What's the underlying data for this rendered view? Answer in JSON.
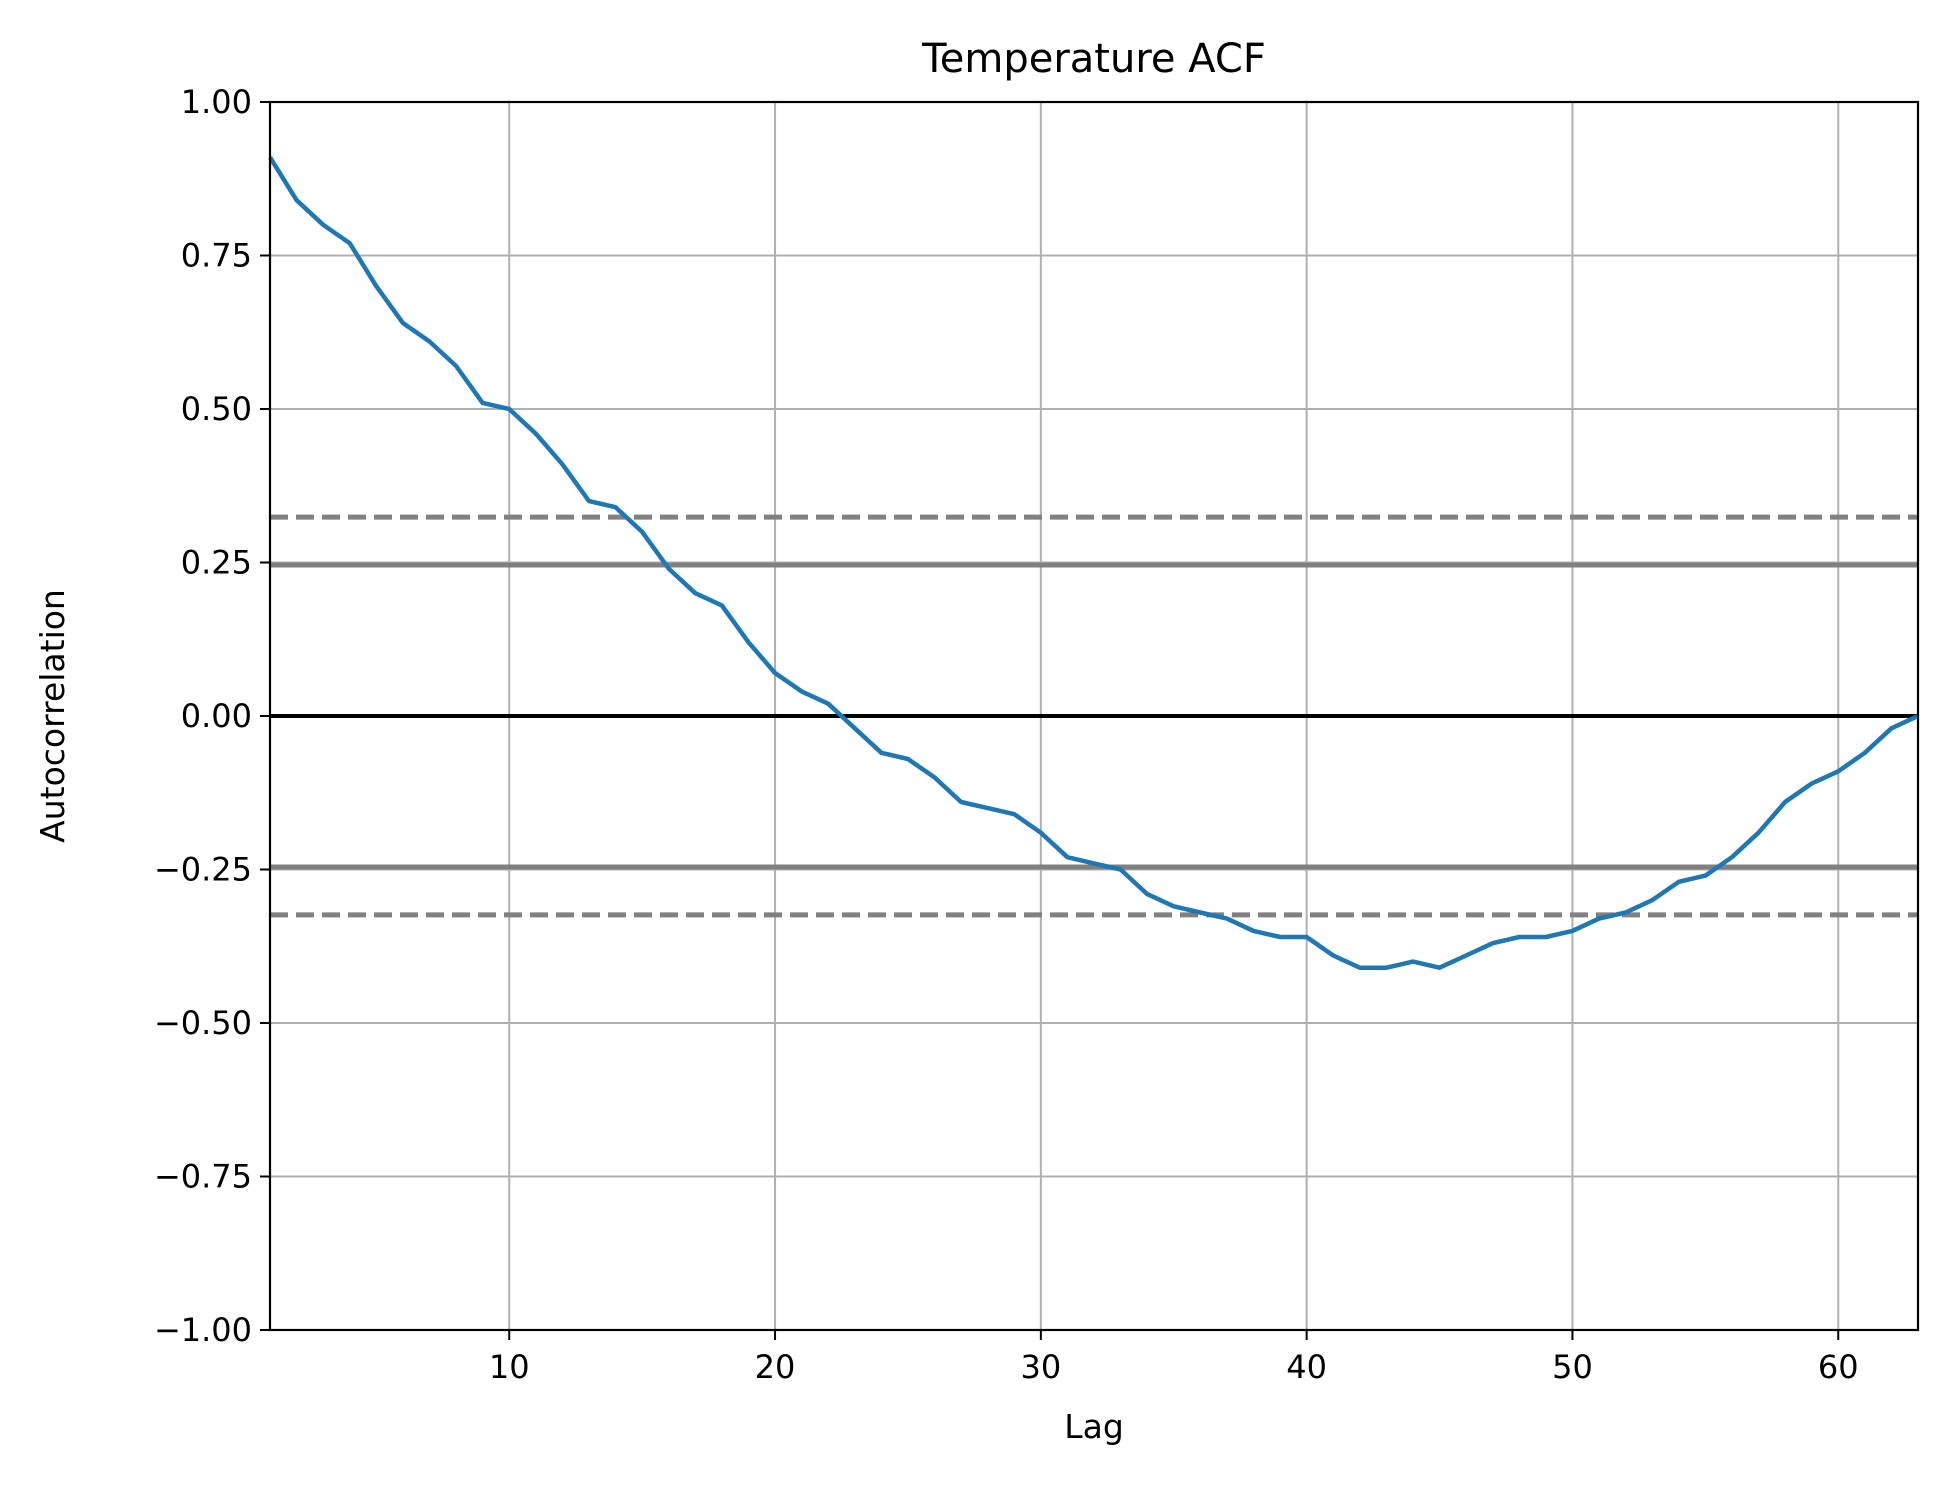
{
  "chart_data": {
    "type": "line",
    "title": "Temperature ACF",
    "xlabel": "Lag",
    "ylabel": "Autocorrelation",
    "xlim": [
      1,
      63
    ],
    "ylim": [
      -1.0,
      1.0
    ],
    "grid": true,
    "x_ticks": [
      10,
      20,
      30,
      40,
      50,
      60
    ],
    "x_tick_labels": [
      "10",
      "20",
      "30",
      "40",
      "50",
      "60"
    ],
    "y_ticks": [
      1.0,
      0.75,
      0.5,
      0.25,
      0.0,
      -0.25,
      -0.5,
      -0.75,
      -1.0
    ],
    "y_tick_labels": [
      "1.00",
      "0.75",
      "0.50",
      "0.25",
      "0.00",
      "−0.25",
      "−0.50",
      "−0.75",
      "−1.00"
    ],
    "reference_lines": [
      {
        "y": 0.0,
        "style": "solid",
        "color": "#000000"
      },
      {
        "y": 0.246,
        "style": "solid",
        "color": "#808080"
      },
      {
        "y": -0.246,
        "style": "solid",
        "color": "#808080"
      },
      {
        "y": 0.324,
        "style": "dashed",
        "color": "#808080"
      },
      {
        "y": -0.324,
        "style": "dashed",
        "color": "#808080"
      }
    ],
    "series": [
      {
        "color": "#1f77b4",
        "x": [
          1,
          2,
          3,
          4,
          5,
          6,
          7,
          8,
          9,
          10,
          11,
          12,
          13,
          14,
          15,
          16,
          17,
          18,
          19,
          20,
          21,
          22,
          23,
          24,
          25,
          26,
          27,
          28,
          29,
          30,
          31,
          32,
          33,
          34,
          35,
          36,
          37,
          38,
          39,
          40,
          41,
          42,
          43,
          44,
          45,
          46,
          47,
          48,
          49,
          50,
          51,
          52,
          53,
          54,
          55,
          56,
          57,
          58,
          59,
          60,
          61,
          62,
          63
        ],
        "values": [
          0.91,
          0.84,
          0.8,
          0.77,
          0.7,
          0.64,
          0.61,
          0.57,
          0.51,
          0.5,
          0.46,
          0.41,
          0.35,
          0.34,
          0.3,
          0.24,
          0.2,
          0.18,
          0.12,
          0.07,
          0.04,
          0.02,
          -0.02,
          -0.06,
          -0.07,
          -0.1,
          -0.14,
          -0.15,
          -0.16,
          -0.19,
          -0.23,
          -0.24,
          -0.25,
          -0.29,
          -0.31,
          -0.32,
          -0.33,
          -0.35,
          -0.36,
          -0.36,
          -0.39,
          -0.41,
          -0.41,
          -0.4,
          -0.41,
          -0.39,
          -0.37,
          -0.36,
          -0.36,
          -0.35,
          -0.33,
          -0.32,
          -0.3,
          -0.27,
          -0.26,
          -0.23,
          -0.19,
          -0.14,
          -0.11,
          -0.09,
          -0.06,
          -0.02,
          0.0
        ]
      }
    ]
  }
}
